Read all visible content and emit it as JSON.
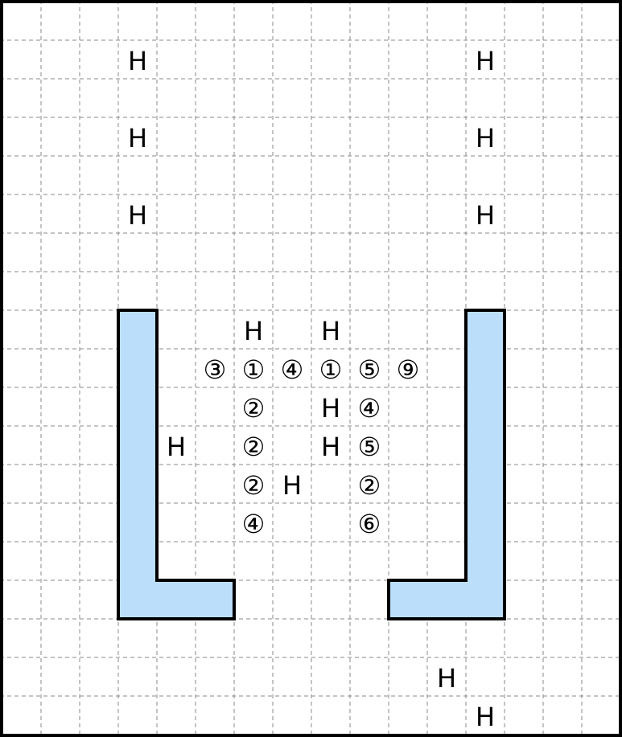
{
  "board": {
    "background": "#ffffff",
    "border_color": "#000000",
    "grid_color": "#888888",
    "grid_style": "dashed",
    "wall_fill": "#bbdefb",
    "wall_stroke": "#000000",
    "text_color": "#000000"
  },
  "cells": [
    {
      "id": "h-top-left-1",
      "text": "H"
    },
    {
      "id": "h-top-right-1",
      "text": "H"
    },
    {
      "id": "h-top-left-2",
      "text": "H"
    },
    {
      "id": "h-top-right-2",
      "text": "H"
    },
    {
      "id": "h-top-left-3",
      "text": "H"
    },
    {
      "id": "h-top-right-3",
      "text": "H"
    },
    {
      "id": "h-mid-left",
      "text": "H"
    },
    {
      "id": "h-mid-right",
      "text": "H"
    },
    {
      "id": "num-3",
      "text": "③"
    },
    {
      "id": "num-1a",
      "text": "①"
    },
    {
      "id": "num-4a",
      "text": "④"
    },
    {
      "id": "num-1b",
      "text": "①"
    },
    {
      "id": "num-5a",
      "text": "⑤"
    },
    {
      "id": "num-9",
      "text": "⑨"
    },
    {
      "id": "num-2a",
      "text": "②"
    },
    {
      "id": "h-row3",
      "text": "H"
    },
    {
      "id": "num-4b",
      "text": "④"
    },
    {
      "id": "h-side-left",
      "text": "H"
    },
    {
      "id": "num-2b",
      "text": "②"
    },
    {
      "id": "h-row4",
      "text": "H"
    },
    {
      "id": "num-5b",
      "text": "⑤"
    },
    {
      "id": "num-2c",
      "text": "②"
    },
    {
      "id": "h-row5",
      "text": "H"
    },
    {
      "id": "num-2d",
      "text": "②"
    },
    {
      "id": "num-4c",
      "text": "④"
    },
    {
      "id": "num-6",
      "text": "⑥"
    },
    {
      "id": "h-bottom-1",
      "text": "H"
    },
    {
      "id": "h-bottom-2",
      "text": "H"
    }
  ]
}
